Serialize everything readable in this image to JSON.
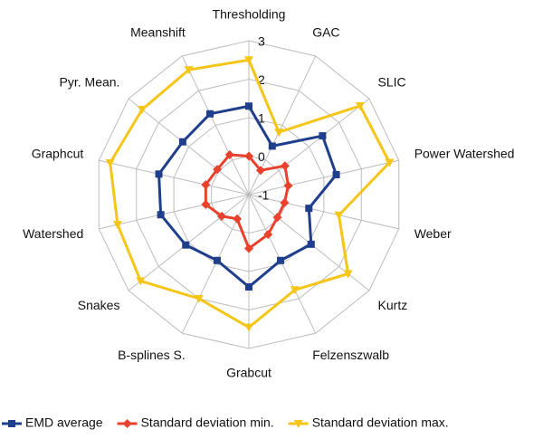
{
  "chart_data": {
    "type": "radar",
    "categories": [
      "Thresholding",
      "GAC",
      "SLIC",
      "Power Watershed",
      "Weber",
      "Kurtz",
      "Felzenszwalb",
      "Grabcut",
      "B-splines S.",
      "Snakes",
      "Watershed",
      "Graphcut",
      "Pyr. Mean.",
      "Meanshift"
    ],
    "series": [
      {
        "name": "EMD average",
        "color": "#1f3f8c",
        "marker": "square",
        "values": [
          1.3,
          0.4,
          1.45,
          1.33,
          0.6,
          1.07,
          0.9,
          1.4,
          0.9,
          1.1,
          1.35,
          1.4,
          1.2,
          1.33
        ]
      },
      {
        "name": "Standard deviation min.",
        "color": "#e8412c",
        "marker": "diamond",
        "values": [
          0,
          -0.3,
          0.2,
          0.05,
          -0.05,
          -0.05,
          0.15,
          0.4,
          -0.3,
          -0.1,
          0.15,
          0.15,
          0.05,
          0.15
        ]
      },
      {
        "name": "Standard deviation max.",
        "color": "#f5c518",
        "marker": "triangle",
        "values": [
          2.5,
          0.8,
          2.7,
          2.75,
          1.4,
          2.3,
          1.75,
          2.45,
          2.0,
          2.6,
          2.5,
          2.7,
          2.55,
          2.6
        ]
      }
    ],
    "ylim": [
      -1,
      3
    ],
    "yticks": [
      -1,
      0,
      1,
      2,
      3
    ],
    "grid": true,
    "legend": "bottom"
  }
}
